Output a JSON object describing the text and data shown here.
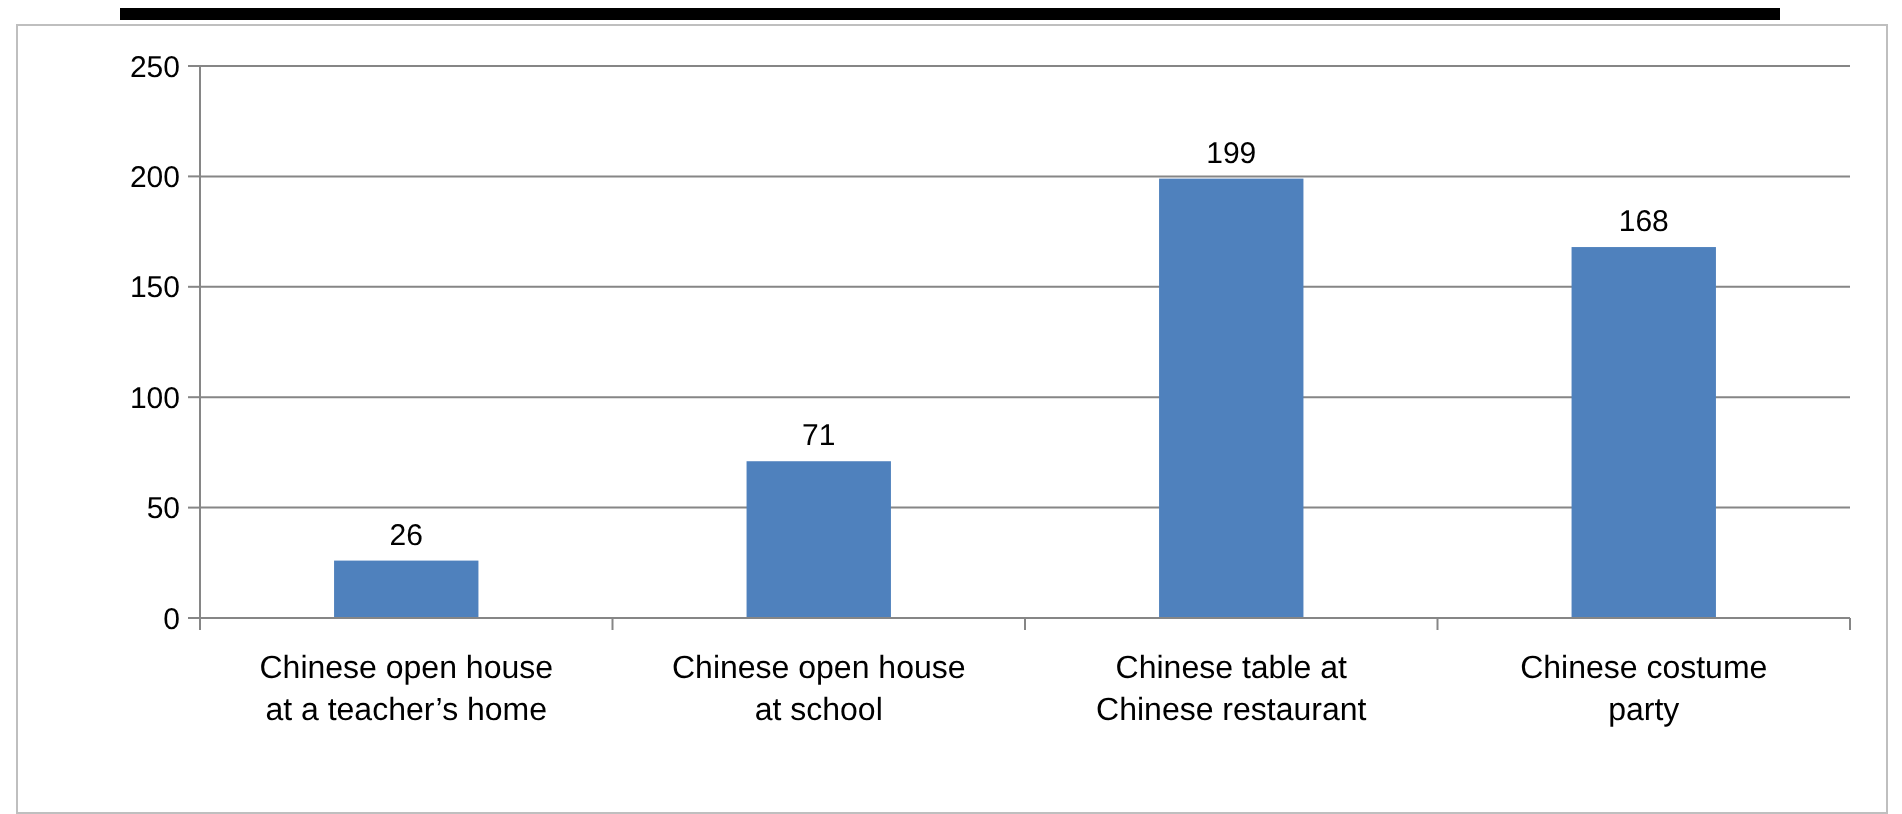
{
  "chart_data": {
    "type": "bar",
    "categories": [
      "Chinese open house at a teacher’s home",
      "Chinese open house at school",
      "Chinese table at Chinese restaurant",
      "Chinese costume party"
    ],
    "values": [
      26,
      71,
      199,
      168
    ],
    "color": "#4f81bd",
    "ylim": [
      0,
      250
    ],
    "yticks": [
      0,
      50,
      100,
      150,
      200,
      250
    ],
    "grid": "y",
    "data_labels": true
  }
}
